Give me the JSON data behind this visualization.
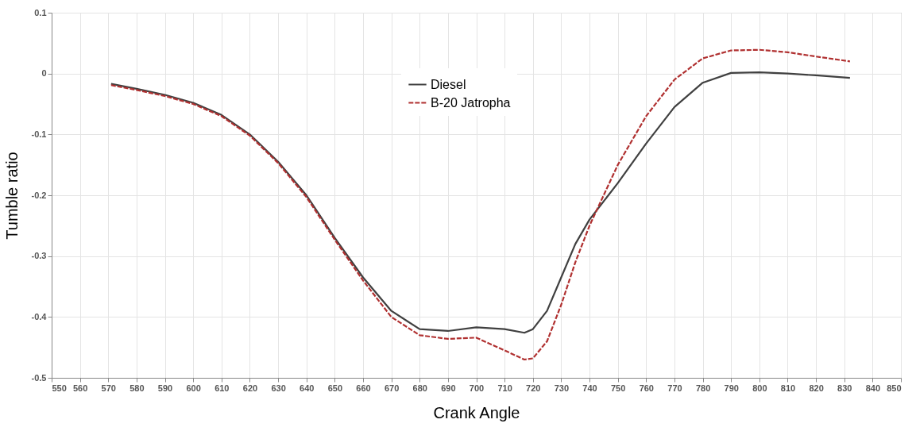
{
  "chart_data": {
    "type": "line",
    "xlabel": "Crank Angle",
    "ylabel": "Tumble ratio",
    "xlim": [
      550,
      850
    ],
    "xticks": [
      550,
      560,
      570,
      580,
      590,
      600,
      610,
      620,
      630,
      640,
      650,
      660,
      670,
      680,
      690,
      700,
      710,
      720,
      730,
      740,
      750,
      760,
      770,
      780,
      790,
      800,
      810,
      820,
      830,
      840,
      850
    ],
    "ylim": [
      -0.5,
      0.1
    ],
    "yticks": [
      {
        "value": -0.5,
        "label": "-0.5"
      },
      {
        "value": -0.4,
        "label": "-0.4"
      },
      {
        "value": -0.3,
        "label": "-0.3"
      },
      {
        "value": -0.2,
        "label": "-0.2"
      },
      {
        "value": -0.1,
        "label": "-0.1"
      },
      {
        "value": 0,
        "label": "0"
      },
      {
        "value": 0.1,
        "label": "0.1"
      }
    ],
    "grid": true,
    "legend": "top",
    "marker": "none",
    "x": [
      571,
      580,
      590,
      600,
      610,
      620,
      630,
      640,
      650,
      660,
      670,
      680,
      690,
      700,
      710,
      717,
      720,
      725,
      730,
      735,
      740,
      750,
      760,
      770,
      780,
      790,
      800,
      810,
      820,
      832
    ],
    "series": [
      {
        "name": "Diesel",
        "color": "#404040",
        "line_style": "solid",
        "values": [
          -0.017,
          -0.025,
          -0.035,
          -0.048,
          -0.068,
          -0.1,
          -0.145,
          -0.2,
          -0.27,
          -0.335,
          -0.39,
          -0.42,
          -0.423,
          -0.417,
          -0.42,
          -0.426,
          -0.42,
          -0.39,
          -0.335,
          -0.28,
          -0.24,
          -0.18,
          -0.115,
          -0.055,
          -0.015,
          0.001,
          0.002,
          0.0,
          -0.003,
          -0.007
        ]
      },
      {
        "name": "B-20 Jatropha",
        "color": "#b03030",
        "line_style": "dashed",
        "values": [
          -0.019,
          -0.027,
          -0.037,
          -0.05,
          -0.07,
          -0.102,
          -0.147,
          -0.203,
          -0.273,
          -0.34,
          -0.4,
          -0.43,
          -0.436,
          -0.434,
          -0.455,
          -0.47,
          -0.468,
          -0.44,
          -0.38,
          -0.31,
          -0.25,
          -0.15,
          -0.07,
          -0.01,
          0.025,
          0.038,
          0.039,
          0.035,
          0.028,
          0.02
        ]
      }
    ]
  }
}
